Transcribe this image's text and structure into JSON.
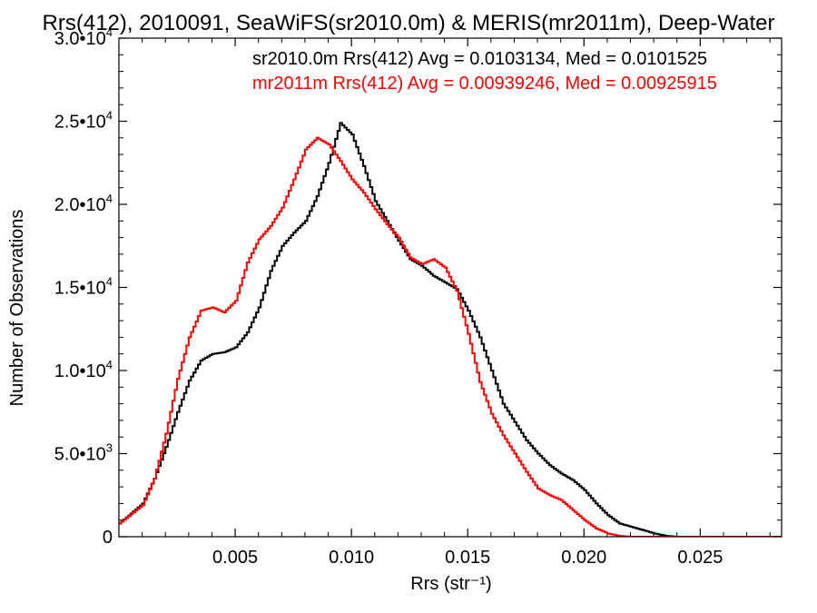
{
  "chart_data": {
    "type": "line",
    "title": "Rrs(412), 2010091, SeaWiFS(sr2010.0m) & MERIS(mr2011m), Deep-Water",
    "xlabel": "Rrs (str⁻¹)",
    "ylabel": "Number of Observations",
    "xlim": [
      0.0,
      0.0285
    ],
    "ylim": [
      0,
      30000
    ],
    "grid": false,
    "legend_position": "top-right",
    "x_ticks": [
      {
        "value": 0.005,
        "label": "0.005"
      },
      {
        "value": 0.01,
        "label": "0.010"
      },
      {
        "value": 0.015,
        "label": "0.015"
      },
      {
        "value": 0.02,
        "label": "0.020"
      },
      {
        "value": 0.025,
        "label": "0.025"
      }
    ],
    "y_ticks": [
      {
        "value": 0,
        "mantissa": "0",
        "exp": ""
      },
      {
        "value": 5000,
        "mantissa": "5.0•",
        "exp": "3"
      },
      {
        "value": 10000,
        "mantissa": "1.0•",
        "exp": "4"
      },
      {
        "value": 15000,
        "mantissa": "1.5•",
        "exp": "4"
      },
      {
        "value": 20000,
        "mantissa": "2.0•",
        "exp": "4"
      },
      {
        "value": 25000,
        "mantissa": "2.5•",
        "exp": "4"
      },
      {
        "value": 30000,
        "mantissa": "3.0•",
        "exp": "4"
      }
    ],
    "series": [
      {
        "name": "sr2010.0m",
        "legend": "sr2010.0m Rrs(412) Avg = 0.0103134, Med = 0.0101525",
        "color": "#000000",
        "points": [
          [
            0.0,
            800
          ],
          [
            0.001,
            2000
          ],
          [
            0.0015,
            3500
          ],
          [
            0.002,
            5400
          ],
          [
            0.0025,
            7500
          ],
          [
            0.003,
            9400
          ],
          [
            0.0035,
            10600
          ],
          [
            0.004,
            11000
          ],
          [
            0.0045,
            11100
          ],
          [
            0.005,
            11400
          ],
          [
            0.0055,
            12300
          ],
          [
            0.006,
            13800
          ],
          [
            0.0065,
            16000
          ],
          [
            0.007,
            17500
          ],
          [
            0.0075,
            18300
          ],
          [
            0.008,
            19000
          ],
          [
            0.0085,
            20500
          ],
          [
            0.009,
            22500
          ],
          [
            0.0095,
            24900
          ],
          [
            0.01,
            24200
          ],
          [
            0.0105,
            22300
          ],
          [
            0.011,
            20200
          ],
          [
            0.0115,
            19000
          ],
          [
            0.012,
            17800
          ],
          [
            0.0125,
            16700
          ],
          [
            0.013,
            16300
          ],
          [
            0.0135,
            15700
          ],
          [
            0.014,
            15300
          ],
          [
            0.0145,
            14900
          ],
          [
            0.015,
            13600
          ],
          [
            0.0155,
            12000
          ],
          [
            0.016,
            10000
          ],
          [
            0.0165,
            8000
          ],
          [
            0.017,
            6900
          ],
          [
            0.0175,
            5800
          ],
          [
            0.018,
            5000
          ],
          [
            0.0185,
            4300
          ],
          [
            0.019,
            3800
          ],
          [
            0.0195,
            3400
          ],
          [
            0.02,
            2800
          ],
          [
            0.0205,
            2000
          ],
          [
            0.021,
            1300
          ],
          [
            0.0215,
            800
          ],
          [
            0.022,
            600
          ],
          [
            0.0225,
            400
          ],
          [
            0.023,
            200
          ],
          [
            0.0235,
            50
          ],
          [
            0.024,
            0
          ],
          [
            0.0285,
            0
          ]
        ]
      },
      {
        "name": "mr2011m",
        "legend": "mr2011m Rrs(412) Avg = 0.00939246, Med = 0.00925915",
        "color": "#ff0000",
        "points": [
          [
            0.0,
            800
          ],
          [
            0.001,
            1900
          ],
          [
            0.0015,
            3500
          ],
          [
            0.002,
            6200
          ],
          [
            0.0025,
            9500
          ],
          [
            0.003,
            12000
          ],
          [
            0.0035,
            13600
          ],
          [
            0.004,
            13800
          ],
          [
            0.0045,
            13500
          ],
          [
            0.005,
            14200
          ],
          [
            0.0055,
            16500
          ],
          [
            0.006,
            17900
          ],
          [
            0.0065,
            18700
          ],
          [
            0.007,
            19800
          ],
          [
            0.0075,
            21500
          ],
          [
            0.008,
            23300
          ],
          [
            0.0085,
            24000
          ],
          [
            0.009,
            23600
          ],
          [
            0.0095,
            22600
          ],
          [
            0.01,
            21500
          ],
          [
            0.0105,
            20700
          ],
          [
            0.011,
            19700
          ],
          [
            0.0115,
            18800
          ],
          [
            0.012,
            18000
          ],
          [
            0.0125,
            16800
          ],
          [
            0.013,
            16400
          ],
          [
            0.0135,
            16700
          ],
          [
            0.014,
            16200
          ],
          [
            0.0145,
            14800
          ],
          [
            0.015,
            12200
          ],
          [
            0.0155,
            9300
          ],
          [
            0.016,
            7400
          ],
          [
            0.0165,
            6100
          ],
          [
            0.017,
            5000
          ],
          [
            0.0175,
            3900
          ],
          [
            0.018,
            2900
          ],
          [
            0.0185,
            2500
          ],
          [
            0.019,
            2200
          ],
          [
            0.0195,
            1600
          ],
          [
            0.02,
            1000
          ],
          [
            0.0205,
            500
          ],
          [
            0.021,
            200
          ],
          [
            0.0215,
            50
          ],
          [
            0.022,
            0
          ],
          [
            0.0285,
            0
          ]
        ]
      }
    ]
  }
}
